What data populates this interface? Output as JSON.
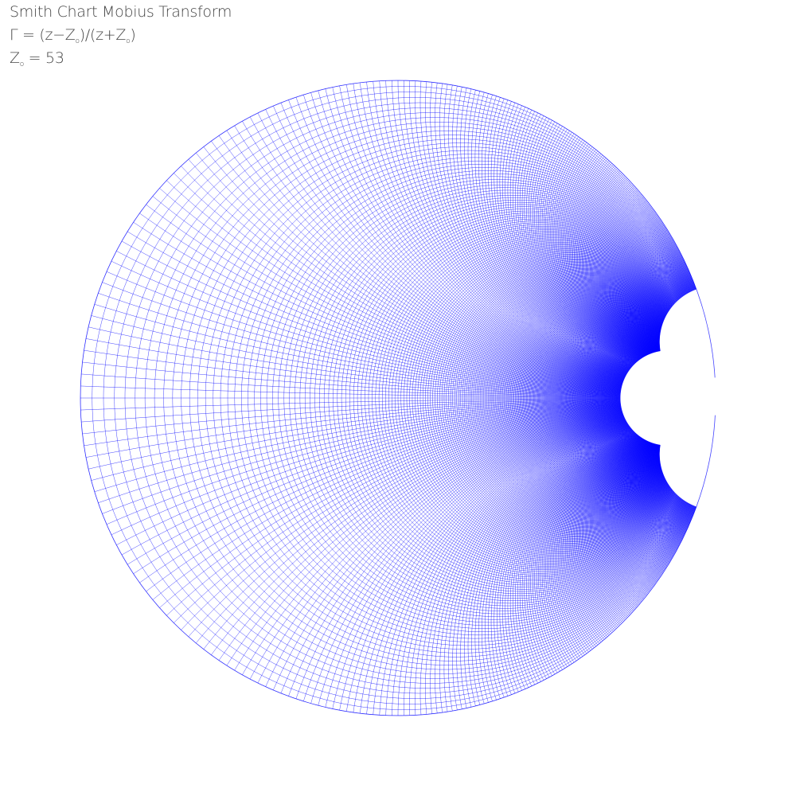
{
  "caption": {
    "title": "Smith Chart Mobius Transform",
    "formula": {
      "gamma": "Γ",
      "eq": " = (z−Z",
      "sub1": "o",
      "mid": ")/(z+Z",
      "sub2": "o",
      "close": ")"
    },
    "impedance": {
      "z": "Z",
      "sub": "o",
      "eq": " = ",
      "value": "53"
    }
  },
  "chart_data": {
    "type": "smith-chart-mobius-grid",
    "z0": 53,
    "mapping": "Γ = (z − Z0)/(z + Z0)",
    "grid": {
      "resistance_step": 1,
      "reactance_step": 1,
      "reactance_range": [
        -300,
        300
      ],
      "resistance_range": [
        0,
        300
      ]
    },
    "line_color": "#0000ff",
    "background": "#ffffff"
  }
}
